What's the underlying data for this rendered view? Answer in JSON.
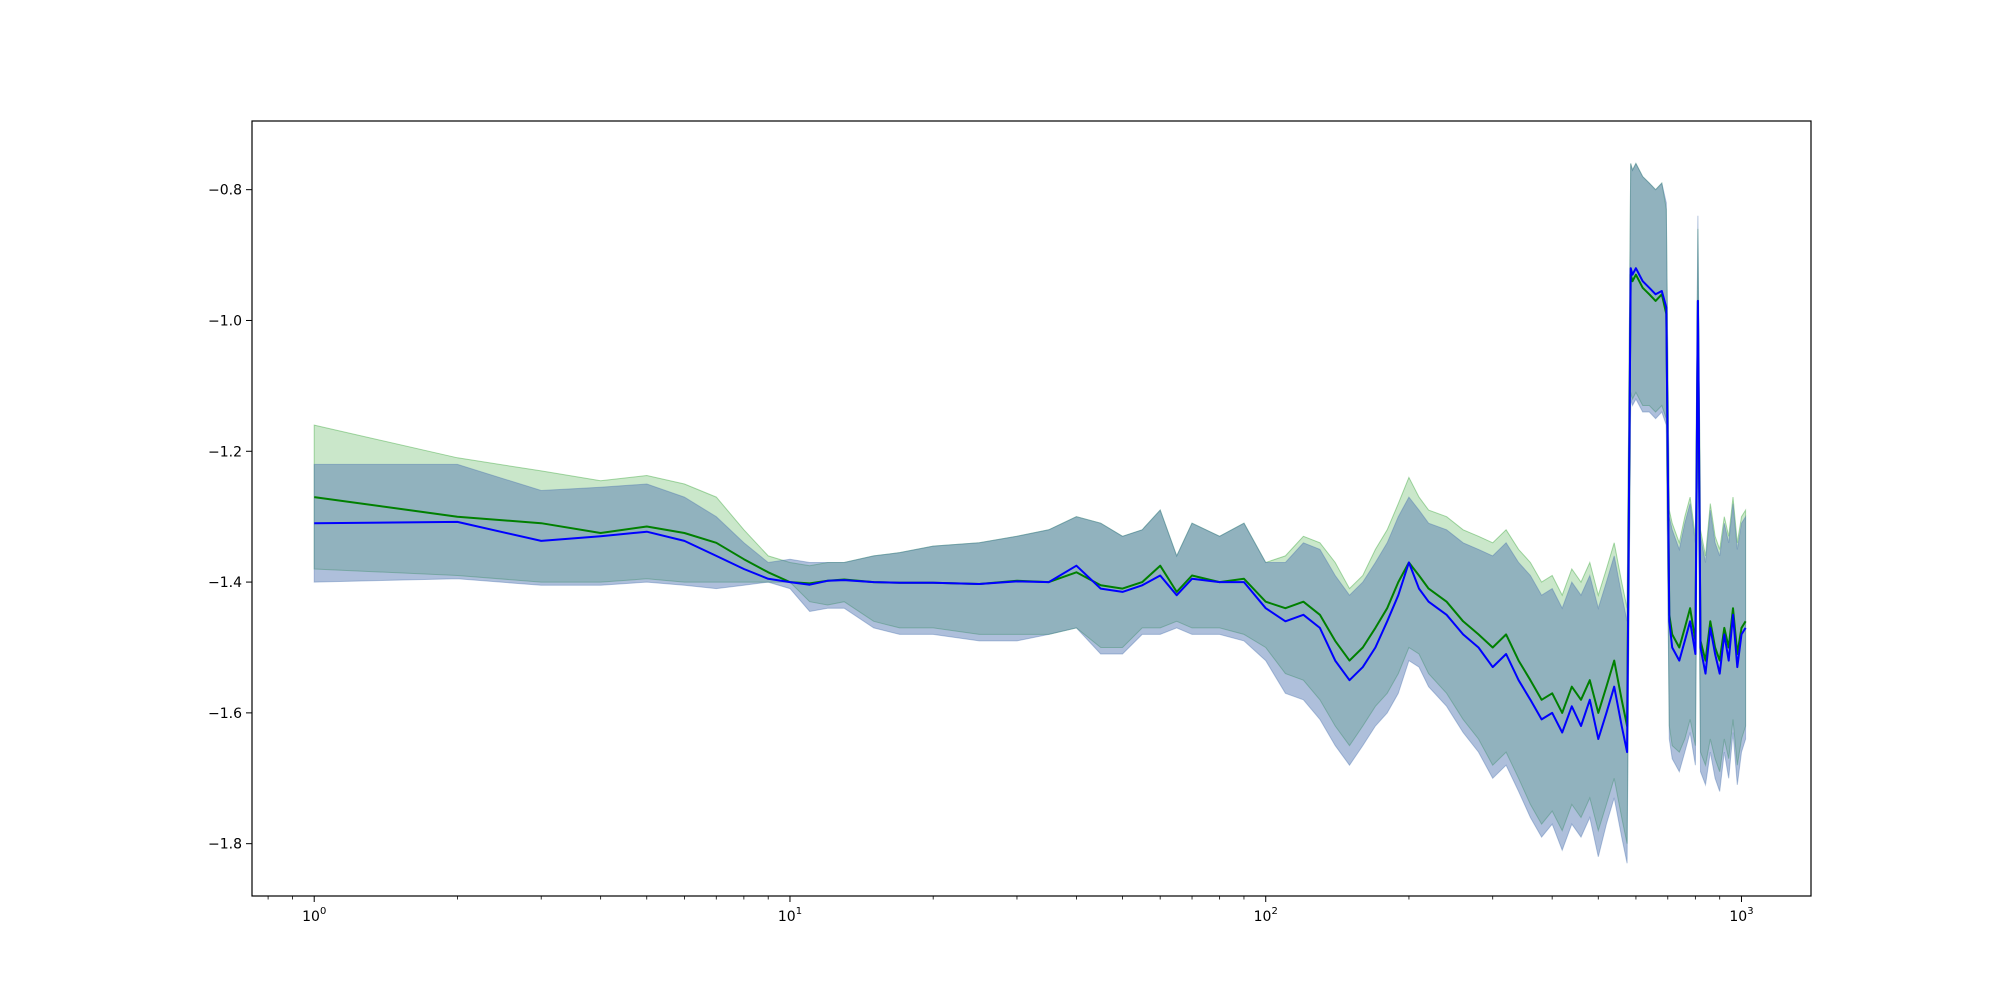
{
  "chart_data": {
    "type": "line",
    "title": "",
    "xlabel": "",
    "ylabel": "",
    "xscale": "log",
    "xlim": [
      0.74,
      1400
    ],
    "ylim": [
      -1.88,
      -0.695
    ],
    "grid": false,
    "legend": "none",
    "x_ticks": [
      {
        "value": 1,
        "base": "10",
        "exp": "0"
      },
      {
        "value": 10,
        "base": "10",
        "exp": "1"
      },
      {
        "value": 100,
        "base": "10",
        "exp": "2"
      },
      {
        "value": 1000,
        "base": "10",
        "exp": "3"
      }
    ],
    "y_ticks": [
      {
        "value": -0.8,
        "label": "−0.8"
      },
      {
        "value": -1.0,
        "label": "−1.0"
      },
      {
        "value": -1.2,
        "label": "−1.2"
      },
      {
        "value": -1.4,
        "label": "−1.4"
      },
      {
        "value": -1.6,
        "label": "−1.6"
      },
      {
        "value": -1.8,
        "label": "−1.8"
      }
    ],
    "series": [
      {
        "color": "#008000",
        "band_color": "#2ca02c",
        "x": [
          1,
          2,
          3,
          4,
          5,
          6,
          7,
          8,
          9,
          10,
          11,
          12,
          13,
          15,
          17,
          20,
          25,
          30,
          35,
          40,
          45,
          50,
          55,
          60,
          65,
          70,
          80,
          90,
          100,
          110,
          120,
          130,
          140,
          150,
          160,
          170,
          180,
          190,
          200,
          210,
          220,
          240,
          260,
          280,
          300,
          320,
          340,
          360,
          380,
          400,
          420,
          440,
          460,
          480,
          500,
          520,
          540,
          560,
          575,
          585,
          590,
          600,
          620,
          640,
          660,
          680,
          695,
          705,
          715,
          740,
          760,
          780,
          800,
          810,
          820,
          840,
          860,
          880,
          900,
          920,
          940,
          960,
          980,
          1000,
          1020
        ],
        "y": [
          -1.27,
          -1.3,
          -1.31,
          -1.325,
          -1.315,
          -1.325,
          -1.34,
          -1.365,
          -1.385,
          -1.4,
          -1.402,
          -1.398,
          -1.396,
          -1.4,
          -1.401,
          -1.401,
          -1.403,
          -1.398,
          -1.4,
          -1.385,
          -1.405,
          -1.41,
          -1.4,
          -1.375,
          -1.415,
          -1.39,
          -1.4,
          -1.395,
          -1.43,
          -1.44,
          -1.43,
          -1.45,
          -1.49,
          -1.52,
          -1.5,
          -1.47,
          -1.44,
          -1.4,
          -1.37,
          -1.39,
          -1.41,
          -1.43,
          -1.46,
          -1.48,
          -1.5,
          -1.48,
          -1.52,
          -1.55,
          -1.58,
          -1.57,
          -1.6,
          -1.56,
          -1.58,
          -1.55,
          -1.6,
          -1.56,
          -1.52,
          -1.58,
          -1.62,
          -0.93,
          -0.94,
          -0.93,
          -0.95,
          -0.96,
          -0.97,
          -0.96,
          -0.99,
          -1.45,
          -1.48,
          -1.5,
          -1.47,
          -1.44,
          -1.49,
          -0.97,
          -1.49,
          -1.52,
          -1.46,
          -1.5,
          -1.52,
          -1.47,
          -1.5,
          -1.44,
          -1.51,
          -1.47,
          -1.46
        ],
        "lo": [
          -1.38,
          -1.39,
          -1.4,
          -1.4,
          -1.395,
          -1.4,
          -1.4,
          -1.4,
          -1.4,
          -1.4,
          -1.43,
          -1.435,
          -1.43,
          -1.46,
          -1.47,
          -1.47,
          -1.48,
          -1.48,
          -1.48,
          -1.47,
          -1.5,
          -1.5,
          -1.47,
          -1.47,
          -1.46,
          -1.47,
          -1.47,
          -1.48,
          -1.5,
          -1.54,
          -1.55,
          -1.58,
          -1.62,
          -1.65,
          -1.62,
          -1.59,
          -1.57,
          -1.54,
          -1.5,
          -1.51,
          -1.54,
          -1.57,
          -1.61,
          -1.64,
          -1.68,
          -1.66,
          -1.7,
          -1.74,
          -1.77,
          -1.75,
          -1.78,
          -1.74,
          -1.76,
          -1.73,
          -1.78,
          -1.74,
          -1.7,
          -1.76,
          -1.8,
          -1.11,
          -1.12,
          -1.11,
          -1.13,
          -1.13,
          -1.14,
          -1.13,
          -1.15,
          -1.62,
          -1.65,
          -1.66,
          -1.64,
          -1.61,
          -1.65,
          -1.14,
          -1.66,
          -1.68,
          -1.64,
          -1.67,
          -1.69,
          -1.64,
          -1.67,
          -1.61,
          -1.68,
          -1.64,
          -1.62
        ],
        "hi": [
          -1.16,
          -1.21,
          -1.23,
          -1.245,
          -1.237,
          -1.25,
          -1.27,
          -1.32,
          -1.36,
          -1.37,
          -1.375,
          -1.37,
          -1.37,
          -1.36,
          -1.355,
          -1.345,
          -1.34,
          -1.33,
          -1.32,
          -1.3,
          -1.31,
          -1.33,
          -1.32,
          -1.29,
          -1.36,
          -1.31,
          -1.33,
          -1.31,
          -1.37,
          -1.36,
          -1.33,
          -1.34,
          -1.37,
          -1.41,
          -1.39,
          -1.35,
          -1.32,
          -1.28,
          -1.24,
          -1.27,
          -1.29,
          -1.3,
          -1.32,
          -1.33,
          -1.34,
          -1.32,
          -1.35,
          -1.37,
          -1.4,
          -1.39,
          -1.42,
          -1.38,
          -1.4,
          -1.37,
          -1.42,
          -1.38,
          -1.34,
          -1.4,
          -1.44,
          -0.76,
          -0.77,
          -0.76,
          -0.78,
          -0.79,
          -0.8,
          -0.79,
          -0.83,
          -1.29,
          -1.31,
          -1.34,
          -1.3,
          -1.27,
          -1.33,
          -0.86,
          -1.32,
          -1.36,
          -1.28,
          -1.33,
          -1.35,
          -1.3,
          -1.33,
          -1.27,
          -1.34,
          -1.3,
          -1.29
        ]
      },
      {
        "color": "#0000ff",
        "band_color": "#4c72b0",
        "x": [
          1,
          2,
          3,
          4,
          5,
          6,
          7,
          8,
          9,
          10,
          11,
          12,
          13,
          15,
          17,
          20,
          25,
          30,
          35,
          40,
          45,
          50,
          55,
          60,
          65,
          70,
          80,
          90,
          100,
          110,
          120,
          130,
          140,
          150,
          160,
          170,
          180,
          190,
          200,
          210,
          220,
          240,
          260,
          280,
          300,
          320,
          340,
          360,
          380,
          400,
          420,
          440,
          460,
          480,
          500,
          520,
          540,
          560,
          575,
          585,
          590,
          600,
          620,
          640,
          660,
          680,
          695,
          705,
          715,
          740,
          760,
          780,
          800,
          810,
          820,
          840,
          860,
          880,
          900,
          920,
          940,
          960,
          980,
          1000,
          1020
        ],
        "y": [
          -1.31,
          -1.308,
          -1.337,
          -1.33,
          -1.323,
          -1.337,
          -1.36,
          -1.38,
          -1.395,
          -1.4,
          -1.404,
          -1.398,
          -1.397,
          -1.4,
          -1.401,
          -1.401,
          -1.403,
          -1.399,
          -1.4,
          -1.375,
          -1.41,
          -1.415,
          -1.405,
          -1.39,
          -1.42,
          -1.395,
          -1.4,
          -1.4,
          -1.44,
          -1.46,
          -1.45,
          -1.47,
          -1.52,
          -1.55,
          -1.53,
          -1.5,
          -1.46,
          -1.42,
          -1.37,
          -1.41,
          -1.43,
          -1.45,
          -1.48,
          -1.5,
          -1.53,
          -1.51,
          -1.55,
          -1.58,
          -1.61,
          -1.6,
          -1.63,
          -1.59,
          -1.62,
          -1.58,
          -1.64,
          -1.6,
          -1.56,
          -1.62,
          -1.66,
          -0.92,
          -0.93,
          -0.92,
          -0.94,
          -0.95,
          -0.96,
          -0.955,
          -0.98,
          -1.46,
          -1.5,
          -1.52,
          -1.49,
          -1.46,
          -1.51,
          -0.97,
          -1.5,
          -1.54,
          -1.47,
          -1.51,
          -1.54,
          -1.48,
          -1.52,
          -1.45,
          -1.53,
          -1.48,
          -1.47
        ],
        "lo": [
          -1.4,
          -1.395,
          -1.405,
          -1.405,
          -1.4,
          -1.405,
          -1.41,
          -1.405,
          -1.4,
          -1.41,
          -1.445,
          -1.44,
          -1.44,
          -1.47,
          -1.48,
          -1.48,
          -1.49,
          -1.49,
          -1.48,
          -1.47,
          -1.51,
          -1.51,
          -1.48,
          -1.48,
          -1.47,
          -1.48,
          -1.48,
          -1.49,
          -1.52,
          -1.57,
          -1.58,
          -1.61,
          -1.65,
          -1.68,
          -1.65,
          -1.62,
          -1.6,
          -1.57,
          -1.52,
          -1.53,
          -1.56,
          -1.59,
          -1.63,
          -1.66,
          -1.7,
          -1.68,
          -1.72,
          -1.76,
          -1.79,
          -1.77,
          -1.81,
          -1.77,
          -1.79,
          -1.76,
          -1.82,
          -1.77,
          -1.73,
          -1.79,
          -1.83,
          -1.12,
          -1.13,
          -1.12,
          -1.14,
          -1.14,
          -1.15,
          -1.14,
          -1.16,
          -1.64,
          -1.67,
          -1.69,
          -1.66,
          -1.63,
          -1.68,
          -1.15,
          -1.69,
          -1.71,
          -1.66,
          -1.7,
          -1.72,
          -1.66,
          -1.7,
          -1.63,
          -1.71,
          -1.66,
          -1.64
        ],
        "hi": [
          -1.22,
          -1.22,
          -1.26,
          -1.255,
          -1.25,
          -1.27,
          -1.3,
          -1.34,
          -1.37,
          -1.365,
          -1.37,
          -1.37,
          -1.37,
          -1.36,
          -1.355,
          -1.345,
          -1.34,
          -1.33,
          -1.32,
          -1.3,
          -1.31,
          -1.33,
          -1.32,
          -1.29,
          -1.36,
          -1.31,
          -1.33,
          -1.31,
          -1.37,
          -1.37,
          -1.34,
          -1.35,
          -1.39,
          -1.42,
          -1.4,
          -1.37,
          -1.34,
          -1.3,
          -1.27,
          -1.29,
          -1.31,
          -1.32,
          -1.34,
          -1.35,
          -1.36,
          -1.34,
          -1.37,
          -1.39,
          -1.42,
          -1.41,
          -1.44,
          -1.4,
          -1.42,
          -1.39,
          -1.44,
          -1.4,
          -1.36,
          -1.42,
          -1.46,
          -0.76,
          -0.77,
          -0.76,
          -0.78,
          -0.79,
          -0.8,
          -0.79,
          -0.82,
          -1.3,
          -1.32,
          -1.35,
          -1.31,
          -1.28,
          -1.34,
          -0.84,
          -1.33,
          -1.37,
          -1.29,
          -1.34,
          -1.36,
          -1.31,
          -1.34,
          -1.28,
          -1.35,
          -1.31,
          -1.3
        ]
      }
    ]
  }
}
